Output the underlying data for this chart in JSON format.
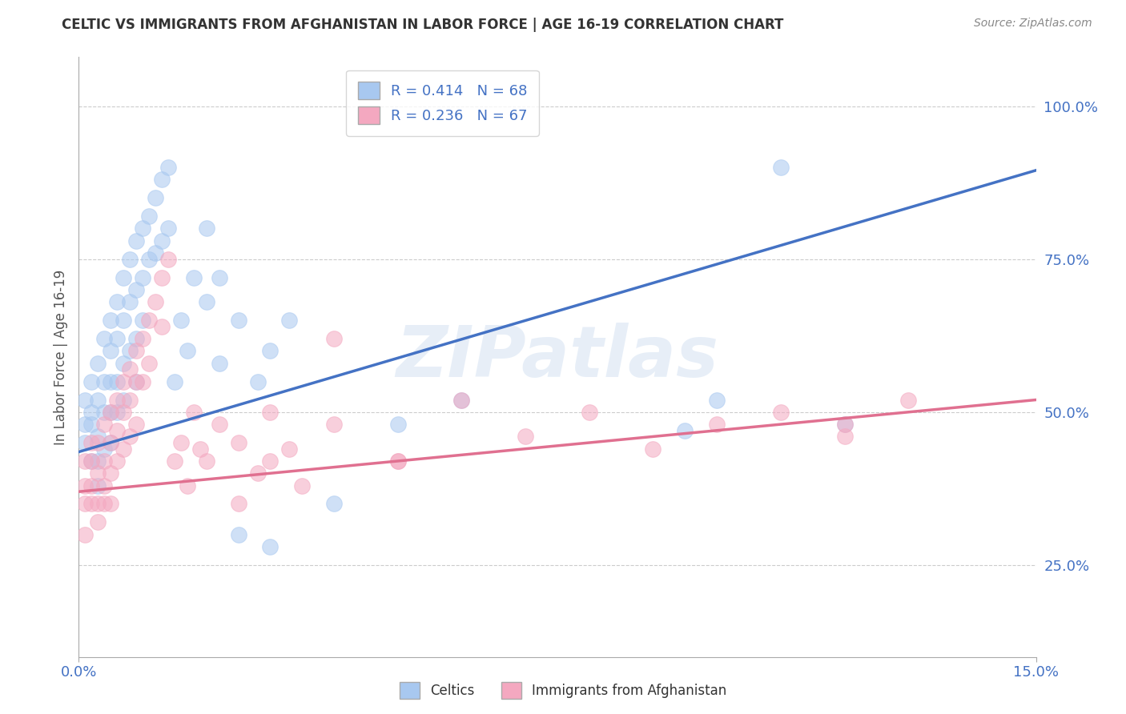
{
  "title": "CELTIC VS IMMIGRANTS FROM AFGHANISTAN IN LABOR FORCE | AGE 16-19 CORRELATION CHART",
  "source": "Source: ZipAtlas.com",
  "ylabel": "In Labor Force | Age 16-19",
  "xlim": [
    0.0,
    0.15
  ],
  "ylim": [
    0.1,
    1.08
  ],
  "xtick_vals": [
    0.0,
    0.15
  ],
  "xtick_labels": [
    "0.0%",
    "15.0%"
  ],
  "ytick_vals": [
    0.25,
    0.5,
    0.75,
    1.0
  ],
  "ytick_labels": [
    "25.0%",
    "50.0%",
    "75.0%",
    "100.0%"
  ],
  "legend_r1": "R = 0.414   N = 68",
  "legend_r2": "R = 0.236   N = 67",
  "color_blue": "#a8c8f0",
  "color_pink": "#f4a8c0",
  "color_blue_line": "#4472c4",
  "color_pink_line": "#e07090",
  "color_axis_text": "#4472c4",
  "watermark_text": "ZIPatlas",
  "celtics_x": [
    0.001,
    0.001,
    0.001,
    0.002,
    0.002,
    0.002,
    0.002,
    0.003,
    0.003,
    0.003,
    0.003,
    0.003,
    0.004,
    0.004,
    0.004,
    0.004,
    0.005,
    0.005,
    0.005,
    0.005,
    0.005,
    0.006,
    0.006,
    0.006,
    0.006,
    0.007,
    0.007,
    0.007,
    0.007,
    0.008,
    0.008,
    0.008,
    0.009,
    0.009,
    0.009,
    0.009,
    0.01,
    0.01,
    0.01,
    0.011,
    0.011,
    0.012,
    0.012,
    0.013,
    0.013,
    0.014,
    0.014,
    0.015,
    0.016,
    0.017,
    0.018,
    0.02,
    0.022,
    0.025,
    0.028,
    0.03,
    0.033,
    0.04,
    0.05,
    0.06,
    0.02,
    0.022,
    0.025,
    0.03,
    0.095,
    0.1,
    0.11,
    0.12
  ],
  "celtics_y": [
    0.48,
    0.52,
    0.45,
    0.5,
    0.55,
    0.48,
    0.42,
    0.58,
    0.52,
    0.46,
    0.42,
    0.38,
    0.62,
    0.55,
    0.5,
    0.44,
    0.65,
    0.6,
    0.55,
    0.5,
    0.45,
    0.68,
    0.62,
    0.55,
    0.5,
    0.72,
    0.65,
    0.58,
    0.52,
    0.75,
    0.68,
    0.6,
    0.78,
    0.7,
    0.62,
    0.55,
    0.8,
    0.72,
    0.65,
    0.82,
    0.75,
    0.85,
    0.76,
    0.88,
    0.78,
    0.9,
    0.8,
    0.55,
    0.65,
    0.6,
    0.72,
    0.68,
    0.58,
    0.3,
    0.55,
    0.6,
    0.65,
    0.35,
    0.48,
    0.52,
    0.8,
    0.72,
    0.65,
    0.28,
    0.47,
    0.52,
    0.9,
    0.48
  ],
  "afghan_x": [
    0.001,
    0.001,
    0.001,
    0.001,
    0.002,
    0.002,
    0.002,
    0.002,
    0.003,
    0.003,
    0.003,
    0.003,
    0.004,
    0.004,
    0.004,
    0.004,
    0.005,
    0.005,
    0.005,
    0.005,
    0.006,
    0.006,
    0.006,
    0.007,
    0.007,
    0.007,
    0.008,
    0.008,
    0.008,
    0.009,
    0.009,
    0.009,
    0.01,
    0.01,
    0.011,
    0.011,
    0.012,
    0.013,
    0.013,
    0.014,
    0.015,
    0.016,
    0.017,
    0.018,
    0.019,
    0.02,
    0.022,
    0.025,
    0.028,
    0.03,
    0.033,
    0.04,
    0.05,
    0.06,
    0.07,
    0.08,
    0.09,
    0.1,
    0.11,
    0.12,
    0.025,
    0.03,
    0.035,
    0.04,
    0.05,
    0.12,
    0.13
  ],
  "afghan_y": [
    0.38,
    0.42,
    0.35,
    0.3,
    0.42,
    0.45,
    0.38,
    0.35,
    0.45,
    0.4,
    0.35,
    0.32,
    0.48,
    0.42,
    0.38,
    0.35,
    0.5,
    0.45,
    0.4,
    0.35,
    0.52,
    0.47,
    0.42,
    0.55,
    0.5,
    0.44,
    0.57,
    0.52,
    0.46,
    0.6,
    0.55,
    0.48,
    0.62,
    0.55,
    0.65,
    0.58,
    0.68,
    0.72,
    0.64,
    0.75,
    0.42,
    0.45,
    0.38,
    0.5,
    0.44,
    0.42,
    0.48,
    0.45,
    0.4,
    0.5,
    0.44,
    0.48,
    0.42,
    0.52,
    0.46,
    0.5,
    0.44,
    0.48,
    0.5,
    0.46,
    0.35,
    0.42,
    0.38,
    0.62,
    0.42,
    0.48,
    0.52
  ],
  "blue_line_x0": 0.0,
  "blue_line_y0": 0.435,
  "blue_line_x1": 0.15,
  "blue_line_y1": 0.895,
  "pink_line_x0": 0.0,
  "pink_line_y0": 0.37,
  "pink_line_x1": 0.15,
  "pink_line_y1": 0.52
}
